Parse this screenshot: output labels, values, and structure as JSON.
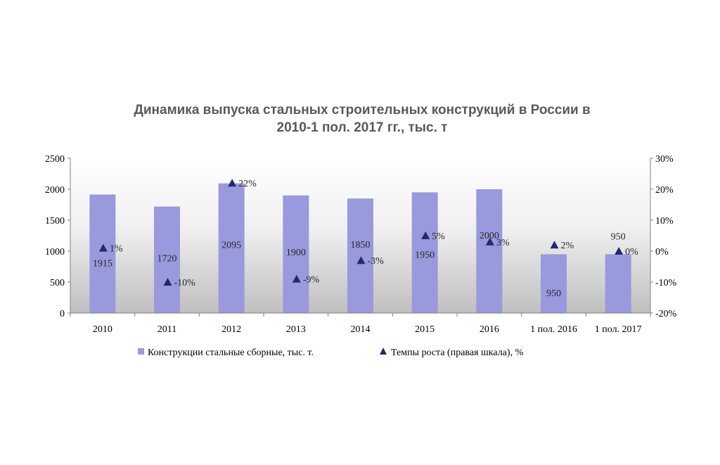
{
  "chart_data": {
    "type": "bar",
    "title": "Динамика выпуска стальных строительных конструкций в России в 2010-1 пол. 2017 гг., тыс. т",
    "title_lines": [
      "Динамика выпуска стальных строительных конструкций в России в",
      "2010-1 пол. 2017 гг., тыс. т"
    ],
    "categories": [
      "2010",
      "2011",
      "2012",
      "2013",
      "2014",
      "2015",
      "2016",
      "1 пол. 2016",
      "1 пол. 2017"
    ],
    "series": [
      {
        "name": "Конструкции стальные сборные, тыс. т.",
        "type": "bar",
        "axis": "left",
        "color": "#9999dd",
        "values": [
          1915,
          1720,
          2095,
          1900,
          1850,
          1950,
          2000,
          950,
          950
        ],
        "labels": [
          "1915",
          "1720",
          "2095",
          "1900",
          "1850",
          "1950",
          "2000",
          "950",
          "950"
        ]
      },
      {
        "name": "Темпы роста (правая шкала), %",
        "type": "scatter",
        "marker": "triangle",
        "axis": "right",
        "color": "#1f2a6b",
        "values": [
          1,
          -10,
          22,
          -9,
          -3,
          5,
          3,
          2,
          0
        ],
        "labels": [
          "1%",
          "-10%",
          "22%",
          "-9%",
          "-3%",
          "5%",
          "3%",
          "2%",
          "0%"
        ]
      }
    ],
    "y_left": {
      "min": 0,
      "max": 2500,
      "ticks": [
        "0",
        "500",
        "1000",
        "1500",
        "2000",
        "2500"
      ]
    },
    "y_right": {
      "min": -20,
      "max": 30,
      "ticks": [
        "-20%",
        "-10%",
        "0%",
        "10%",
        "20%",
        "30%"
      ]
    },
    "grid": false,
    "plot_background": "gradient-gray",
    "legend_position": "bottom"
  }
}
